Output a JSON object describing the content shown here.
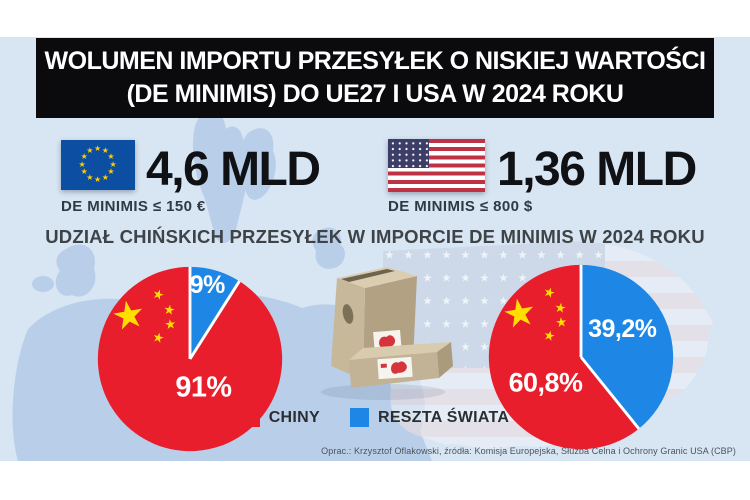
{
  "title": {
    "line1": "WOLUMEN IMPORTU PRZESYŁEK O NISKIEJ WARTOŚCI",
    "line2": "(DE MINIMIS) DO UE27 I USA W 2024 ROKU"
  },
  "stats": {
    "eu": {
      "flag": "eu-flag",
      "value": "4,6 MLD",
      "caption": "DE MINIMIS ≤ 150 €"
    },
    "usa": {
      "flag": "us-flag",
      "value": "1,36 MLD",
      "caption": "DE MINIMIS ≤ 800 $"
    }
  },
  "subtitle": "UDZIAŁ CHIŃSKICH PRZESYŁEK W IMPORCIE DE MINIMIS W 2024 ROKU",
  "chart_data": [
    {
      "type": "pie",
      "region": "UE27",
      "unit": "percent",
      "start_angle_deg": 0,
      "direction": "clockwise",
      "slices": [
        {
          "label": "RESZTA ŚWIATA",
          "value": 9,
          "display": "9%",
          "color": "#1e87e6"
        },
        {
          "label": "CHINY",
          "value": 91,
          "display": "91%",
          "color": "#e81e2d"
        }
      ]
    },
    {
      "type": "pie",
      "region": "USA",
      "unit": "percent",
      "start_angle_deg": 0,
      "direction": "clockwise",
      "slices": [
        {
          "label": "RESZTA ŚWIATA",
          "value": 39.2,
          "display": "39,2%",
          "color": "#1e87e6"
        },
        {
          "label": "CHINY",
          "value": 60.8,
          "display": "60,8%",
          "color": "#e81e2d"
        }
      ]
    }
  ],
  "legend": [
    {
      "label": "CHINY",
      "color": "#e81e2d"
    },
    {
      "label": "RESZTA ŚWIATA",
      "color": "#1e87e6"
    }
  ],
  "credit": "Oprac.: Krzysztof Oflakowski, źródła: Komisja Europejska, Służba Celna i Ochrony Granic USA (CBP)",
  "colors": {
    "background": "#d8e5f2",
    "map": "#b9cfe9",
    "banner": "#0b0b0d",
    "china_red": "#e81e2d",
    "world_blue": "#1e87e6",
    "eu_flag_blue": "#0b4ea2",
    "star_yellow": "#ffde00"
  }
}
